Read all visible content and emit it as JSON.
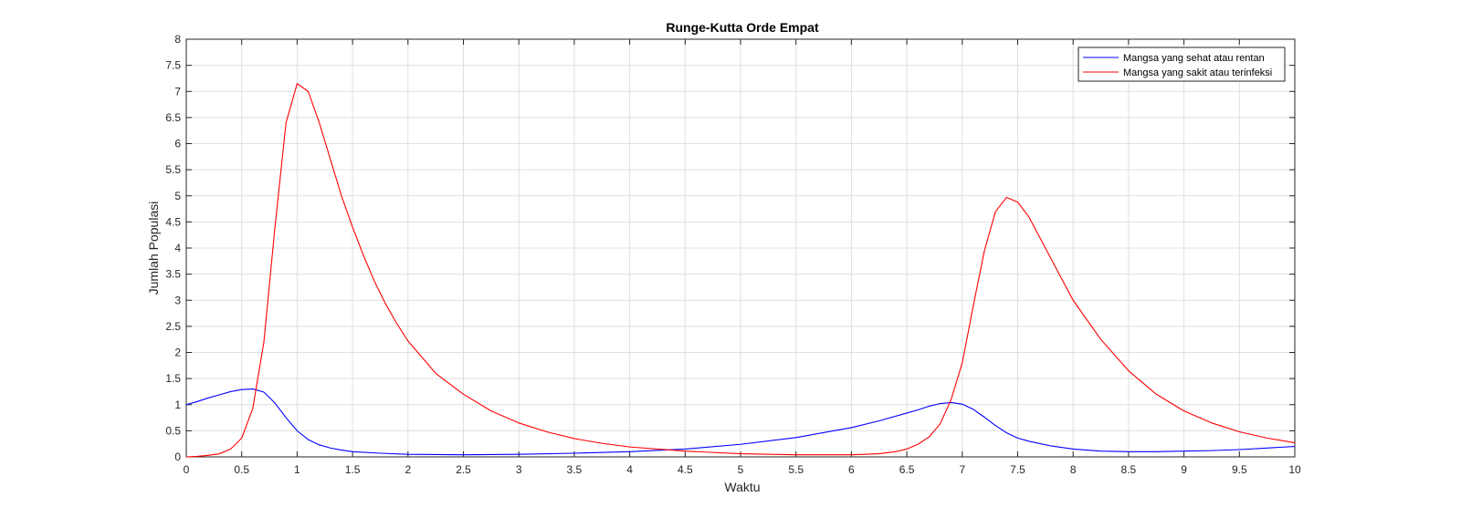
{
  "chart_data": {
    "type": "line",
    "title": "Runge-Kutta Orde Empat",
    "xlabel": "Waktu",
    "ylabel": "Jumlah Populasi",
    "xlim": [
      0,
      10
    ],
    "ylim": [
      0,
      8
    ],
    "xticks": [
      0,
      0.5,
      1,
      1.5,
      2,
      2.5,
      3,
      3.5,
      4,
      4.5,
      5,
      5.5,
      6,
      6.5,
      7,
      7.5,
      8,
      8.5,
      9,
      9.5,
      10
    ],
    "xtick_labels": [
      "0",
      "0.5",
      "1",
      "1.5",
      "2",
      "2.5",
      "3",
      "3.5",
      "4",
      "4.5",
      "5",
      "5.5",
      "6",
      "6.5",
      "7",
      "7.5",
      "8",
      "8.5",
      "9",
      "9.5",
      "10"
    ],
    "yticks": [
      0,
      0.5,
      1,
      1.5,
      2,
      2.5,
      3,
      3.5,
      4,
      4.5,
      5,
      5.5,
      6,
      6.5,
      7,
      7.5,
      8
    ],
    "ytick_labels": [
      "0",
      "0.5",
      "1",
      "1.5",
      "2",
      "2.5",
      "3",
      "3.5",
      "4",
      "4.5",
      "5",
      "5.5",
      "6",
      "6.5",
      "7",
      "7.5",
      "8"
    ],
    "grid": true,
    "legend_position": "top-right",
    "series": [
      {
        "name": "Mangsa yang sehat atau rentan",
        "color": "#0000ff",
        "x": [
          0,
          0.1,
          0.2,
          0.3,
          0.4,
          0.5,
          0.6,
          0.7,
          0.8,
          0.9,
          1.0,
          1.1,
          1.2,
          1.3,
          1.4,
          1.5,
          1.75,
          2.0,
          2.5,
          3.0,
          3.5,
          4.0,
          4.5,
          5.0,
          5.5,
          6.0,
          6.25,
          6.5,
          6.6,
          6.7,
          6.8,
          6.9,
          7.0,
          7.1,
          7.2,
          7.3,
          7.4,
          7.5,
          7.6,
          7.8,
          8.0,
          8.25,
          8.5,
          8.75,
          9.0,
          9.25,
          9.5,
          9.75,
          10.0
        ],
        "y": [
          1.0,
          1.06,
          1.13,
          1.19,
          1.25,
          1.29,
          1.3,
          1.24,
          1.03,
          0.75,
          0.5,
          0.33,
          0.23,
          0.17,
          0.13,
          0.1,
          0.07,
          0.05,
          0.04,
          0.05,
          0.07,
          0.1,
          0.15,
          0.24,
          0.37,
          0.56,
          0.69,
          0.84,
          0.9,
          0.97,
          1.02,
          1.04,
          1.01,
          0.91,
          0.76,
          0.6,
          0.46,
          0.36,
          0.3,
          0.21,
          0.15,
          0.11,
          0.1,
          0.1,
          0.11,
          0.12,
          0.14,
          0.17,
          0.2
        ]
      },
      {
        "name": "Mangsa yang sakit atau terinfeksi",
        "color": "#ff0000",
        "x": [
          0,
          0.1,
          0.2,
          0.3,
          0.4,
          0.5,
          0.6,
          0.7,
          0.8,
          0.9,
          1.0,
          1.1,
          1.2,
          1.3,
          1.4,
          1.5,
          1.6,
          1.7,
          1.8,
          1.9,
          2.0,
          2.25,
          2.5,
          2.75,
          3.0,
          3.25,
          3.5,
          3.75,
          4.0,
          4.5,
          5.0,
          5.5,
          6.0,
          6.25,
          6.4,
          6.5,
          6.6,
          6.7,
          6.8,
          6.9,
          7.0,
          7.1,
          7.2,
          7.3,
          7.4,
          7.5,
          7.6,
          7.7,
          7.8,
          7.9,
          8.0,
          8.25,
          8.5,
          8.75,
          9.0,
          9.25,
          9.5,
          9.75,
          10.0
        ],
        "y": [
          0.0,
          0.01,
          0.03,
          0.06,
          0.15,
          0.36,
          0.93,
          2.2,
          4.4,
          6.4,
          7.15,
          7.0,
          6.4,
          5.7,
          5.0,
          4.4,
          3.85,
          3.35,
          2.92,
          2.55,
          2.22,
          1.6,
          1.2,
          0.88,
          0.65,
          0.48,
          0.35,
          0.26,
          0.19,
          0.11,
          0.06,
          0.04,
          0.04,
          0.06,
          0.1,
          0.15,
          0.24,
          0.38,
          0.63,
          1.1,
          1.8,
          2.9,
          3.95,
          4.7,
          4.97,
          4.88,
          4.6,
          4.2,
          3.8,
          3.4,
          3.0,
          2.25,
          1.65,
          1.2,
          0.88,
          0.65,
          0.48,
          0.36,
          0.27
        ]
      }
    ]
  }
}
